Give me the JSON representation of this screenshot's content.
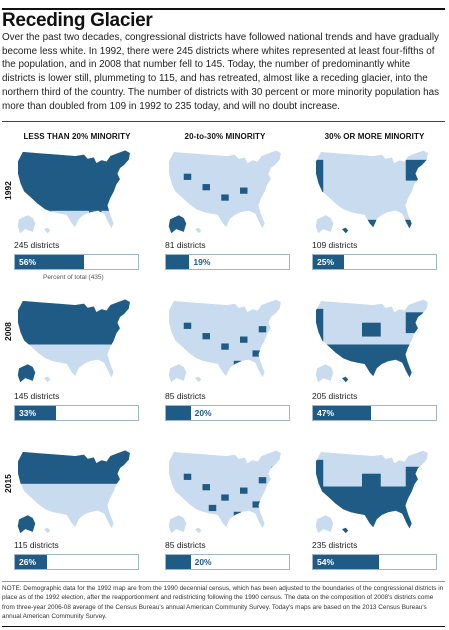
{
  "title": "Receding Glacier",
  "intro": "Over the past two decades, congressional districts have followed national trends and have gradually become less white. In 1992, there were 245 districts where whites represented at least four-fifths of the population, and in 2008 that number fell to 145. Today, the number of predominantly white districts is lower still, plummeting to 115, and has retreated, almost like a receding glacier, into the northern third of the country. The number of districts with 30 percent or more minority population has more than doubled from 109 in 1992 to 235 today, and will no doubt increase.",
  "columns": [
    "LESS THAN 20% MINORITY",
    "20-to-30% MINORITY",
    "30% OR MORE MINORITY"
  ],
  "years": [
    "1992",
    "2008",
    "2015"
  ],
  "percent_note": "Percent of total (435)",
  "colors": {
    "dark_blue": "#1f5b85",
    "light_blue": "#c9dbee",
    "bar_border": "#9fb5c8"
  },
  "chart_data": {
    "type": "bar",
    "title": "Receding Glacier",
    "total_districts": 435,
    "categories": [
      "LESS THAN 20% MINORITY",
      "20-to-30% MINORITY",
      "30% OR MORE MINORITY"
    ],
    "series": [
      {
        "name": "1992",
        "districts": [
          245,
          81,
          109
        ],
        "percent": [
          56,
          19,
          25
        ],
        "district_labels": [
          "245 districts",
          "81 districts",
          "109 districts"
        ],
        "percent_labels": [
          "56%",
          "19%",
          "25%"
        ]
      },
      {
        "name": "2008",
        "districts": [
          145,
          85,
          205
        ],
        "percent": [
          33,
          20,
          47
        ],
        "district_labels": [
          "145 districts",
          "85 districts",
          "205 districts"
        ],
        "percent_labels": [
          "33%",
          "20%",
          "47%"
        ]
      },
      {
        "name": "2015",
        "districts": [
          115,
          85,
          235
        ],
        "percent": [
          26,
          20,
          54
        ],
        "district_labels": [
          "115 districts",
          "85 districts",
          "235 districts"
        ],
        "percent_labels": [
          "26%",
          "20%",
          "54%"
        ]
      }
    ]
  },
  "note": "NOTE: Demographic data for the 1992 map are from the 1990 decennial census, which has been adjusted to the boundaries of the congressional districts in place as of the 1992 election, after the reapportionment and redistricting following the 1990 census. The data on the composition of 2008's districts come from three-year 2006-08 average of the Census Bureau's annual American Community Survey. Today's maps are based on the 2013 Census Bureau's annual American Community Survey."
}
